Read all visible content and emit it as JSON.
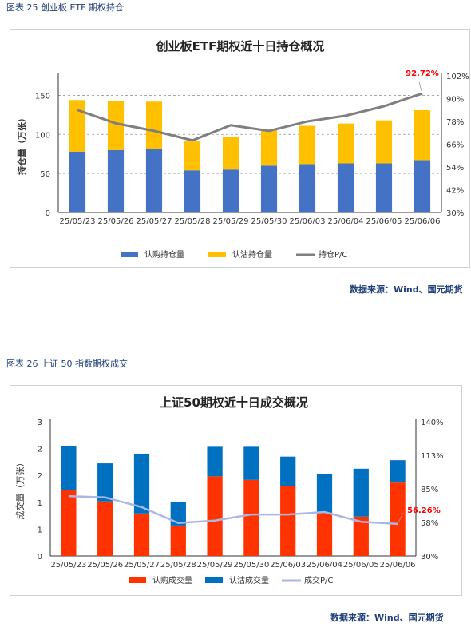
{
  "figure1": {
    "caption": "图表 25 创业板 ETF 期权持仓",
    "source": "数据来源：Wind、国元期货"
  },
  "figure2": {
    "caption": "图表 26 上证 50 指数期权成交",
    "source": "数据来源：Wind、国元期货"
  },
  "chart_data": [
    {
      "type": "bar",
      "stacked": true,
      "title": "创业板ETF期权近十日持仓概况",
      "ylabel": "持仓量（万张）",
      "categories": [
        "25/05/23",
        "25/05/26",
        "25/05/27",
        "25/05/28",
        "25/05/29",
        "25/05/30",
        "25/06/03",
        "25/06/04",
        "25/06/05",
        "25/06/06"
      ],
      "series": [
        {
          "name": "认购持仓量",
          "color": "#4472c4",
          "values": [
            78,
            80,
            81,
            54,
            55,
            60,
            62,
            63,
            63,
            67
          ]
        },
        {
          "name": "认沽持仓量",
          "color": "#ffc000",
          "values": [
            66,
            63,
            61,
            37,
            42,
            46,
            49,
            51,
            55,
            64
          ]
        }
      ],
      "line": {
        "name": "持仓P/C",
        "color": "#7f7f7f",
        "values": [
          84,
          77,
          73,
          68,
          76,
          73,
          78,
          81,
          86,
          92.72
        ]
      },
      "annotation": {
        "text": "92.72%",
        "color": "#ff0000"
      },
      "ylim": [
        0,
        175
      ],
      "yticks": [
        0,
        50,
        100,
        150
      ],
      "y2lim": [
        30,
        102
      ],
      "y2ticks": [
        "30%",
        "42%",
        "54%",
        "66%",
        "78%",
        "90%",
        "102%"
      ],
      "grid": true,
      "legend": "bottom"
    },
    {
      "type": "bar",
      "stacked": true,
      "title": "上证50期权近十日成交概况",
      "ylabel": "成交量（万张）",
      "categories": [
        "25/05/23",
        "25/05/26",
        "25/05/27",
        "25/05/28",
        "25/05/29",
        "25/05/30",
        "25/06/03",
        "25/06/04",
        "25/06/05",
        "25/06/06"
      ],
      "series": [
        {
          "name": "认购成交量",
          "color": "#ff3300",
          "values": [
            1.48,
            1.22,
            0.95,
            0.68,
            1.78,
            1.7,
            1.57,
            0.97,
            0.88,
            1.64
          ]
        },
        {
          "name": "认沽成交量",
          "color": "#0070c0",
          "values": [
            0.98,
            0.85,
            1.32,
            0.53,
            0.66,
            0.74,
            0.65,
            0.87,
            1.07,
            0.5
          ]
        }
      ],
      "line": {
        "name": "成交P/C",
        "color": "#a9b7e6",
        "values": [
          79,
          78,
          70,
          57,
          59,
          64,
          64,
          66,
          58,
          56.26
        ]
      },
      "annotation": {
        "text": "56.26%",
        "color": "#ff0000"
      },
      "ylim": [
        0,
        3
      ],
      "yticks": [
        "0",
        "1",
        "1",
        "2",
        "2",
        "3"
      ],
      "y2lim": [
        30,
        140
      ],
      "y2ticks": [
        "30%",
        "58%",
        "85%",
        "113%",
        "140%"
      ],
      "grid": false,
      "legend": "bottom"
    }
  ]
}
